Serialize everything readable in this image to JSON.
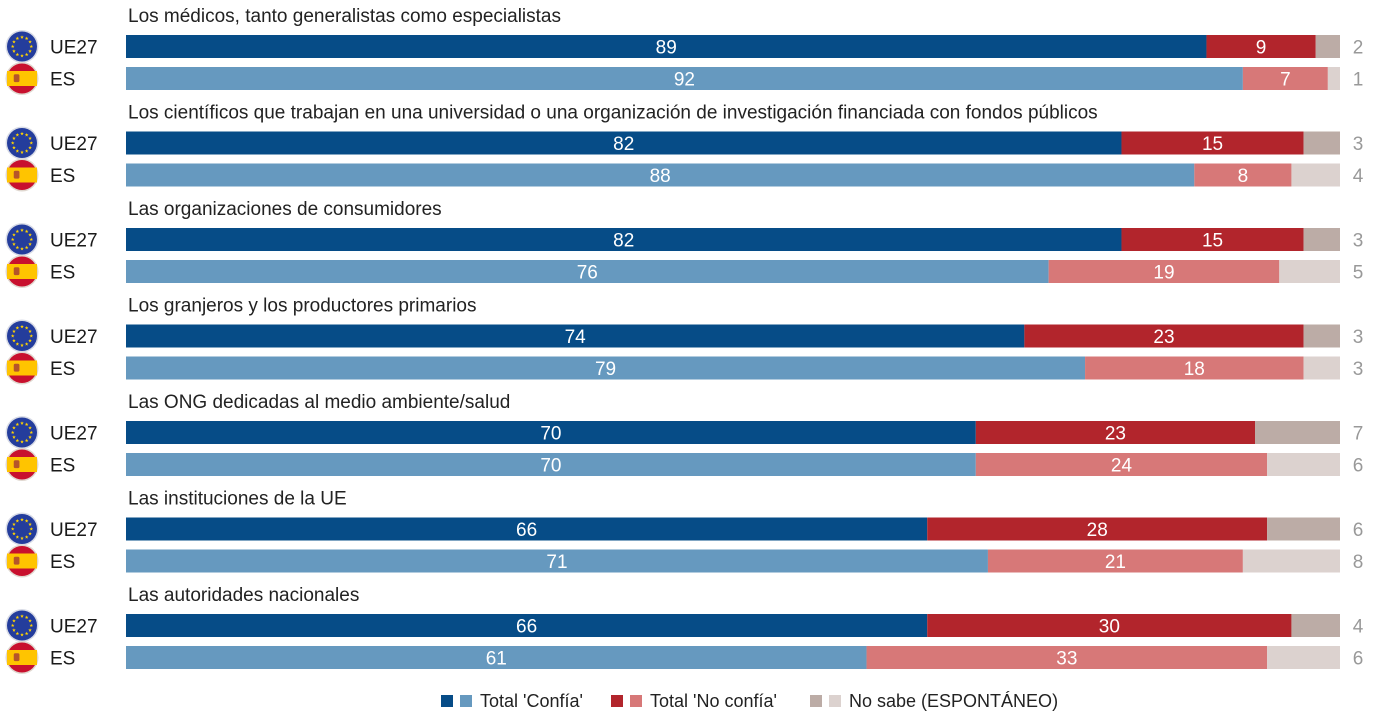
{
  "chart_data": {
    "type": "bar",
    "orientation": "horizontal",
    "stacked": true,
    "xlim": [
      0,
      100
    ],
    "groups": [
      {
        "title": "Los médicos, tanto generalistas como especialistas",
        "rows": [
          {
            "label": "UE27",
            "values": [
              89,
              9,
              2
            ]
          },
          {
            "label": "ES",
            "values": [
              92,
              7,
              1
            ]
          }
        ]
      },
      {
        "title": "Los científicos que trabajan en una universidad o una organización de investigación financiada con fondos públicos",
        "rows": [
          {
            "label": "UE27",
            "values": [
              82,
              15,
              3
            ]
          },
          {
            "label": "ES",
            "values": [
              88,
              8,
              4
            ]
          }
        ]
      },
      {
        "title": "Las organizaciones de consumidores",
        "rows": [
          {
            "label": "UE27",
            "values": [
              82,
              15,
              3
            ]
          },
          {
            "label": "ES",
            "values": [
              76,
              19,
              5
            ]
          }
        ]
      },
      {
        "title": "Los granjeros y los productores primarios",
        "rows": [
          {
            "label": "UE27",
            "values": [
              74,
              23,
              3
            ]
          },
          {
            "label": "ES",
            "values": [
              79,
              18,
              3
            ]
          }
        ]
      },
      {
        "title": "Las ONG dedicadas al medio ambiente/salud",
        "rows": [
          {
            "label": "UE27",
            "values": [
              70,
              23,
              7
            ]
          },
          {
            "label": "ES",
            "values": [
              70,
              24,
              6
            ]
          }
        ]
      },
      {
        "title": "Las instituciones de la UE",
        "rows": [
          {
            "label": "UE27",
            "values": [
              66,
              28,
              6
            ]
          },
          {
            "label": "ES",
            "values": [
              71,
              21,
              8
            ]
          }
        ]
      },
      {
        "title": "Las autoridades nacionales",
        "rows": [
          {
            "label": "UE27",
            "values": [
              66,
              30,
              4
            ]
          },
          {
            "label": "ES",
            "values": [
              61,
              33,
              6
            ]
          }
        ]
      }
    ],
    "series": [
      {
        "name": "Total 'Confía'",
        "color_ue27": "#064c87",
        "color_es": "#6699bf"
      },
      {
        "name": "Total 'No confía'",
        "color_ue27": "#b2252c",
        "color_es": "#d77878"
      },
      {
        "name": "No sabe (ESPONTÁNEO)",
        "color_ue27": "#bcaca6",
        "color_es": "#dcd2cf"
      }
    ],
    "legend_position": "bottom"
  },
  "colors": {
    "eu_flag_bg": "#243d9c",
    "eu_stars": "#ffd200",
    "es_flag_red": "#c8102e",
    "es_flag_yellow": "#ffc400",
    "dk_text": "#999999"
  },
  "icons": {
    "ue27": "eu-flag-icon",
    "es": "spain-flag-icon"
  }
}
